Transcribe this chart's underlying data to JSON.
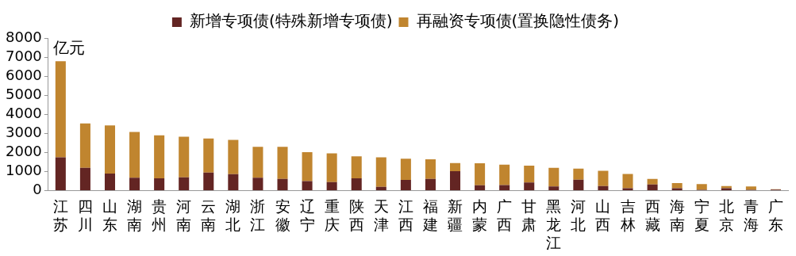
{
  "chart_data": {
    "type": "bar",
    "stacked": true,
    "ylabel": "亿元",
    "categories": [
      "江苏",
      "四川",
      "山东",
      "湖南",
      "贵州",
      "河南",
      "云南",
      "湖北",
      "浙江",
      "安徽",
      "辽宁",
      "重庆",
      "陕西",
      "天津",
      "江西",
      "福建",
      "新疆",
      "内蒙",
      "广西",
      "甘肃",
      "黑龙江",
      "河北",
      "山西",
      "吉林",
      "西藏",
      "海南",
      "宁夏",
      "北京",
      "青海",
      "广东"
    ],
    "series": [
      {
        "name": "新增专项债(特殊新增专项债)",
        "color": "#632523",
        "values": [
          1750,
          1200,
          900,
          680,
          650,
          700,
          950,
          870,
          680,
          620,
          500,
          450,
          650,
          200,
          560,
          620,
          1020,
          280,
          300,
          430,
          220,
          580,
          240,
          130,
          330,
          130,
          50,
          130,
          50,
          60
        ]
      },
      {
        "name": "再融资专项债(置换隐性债务)",
        "color": "#c0852f",
        "values": [
          5030,
          2320,
          2520,
          2400,
          2250,
          2130,
          1790,
          1790,
          1620,
          1680,
          1520,
          1510,
          1150,
          1550,
          1120,
          1030,
          430,
          1160,
          1060,
          880,
          980,
          580,
          800,
          750,
          290,
          270,
          300,
          110,
          170,
          20
        ]
      }
    ],
    "ylim": [
      0,
      8000
    ],
    "yticks": [
      0,
      1000,
      2000,
      3000,
      4000,
      5000,
      6000,
      7000,
      8000
    ],
    "grid": false,
    "legend": "top"
  }
}
